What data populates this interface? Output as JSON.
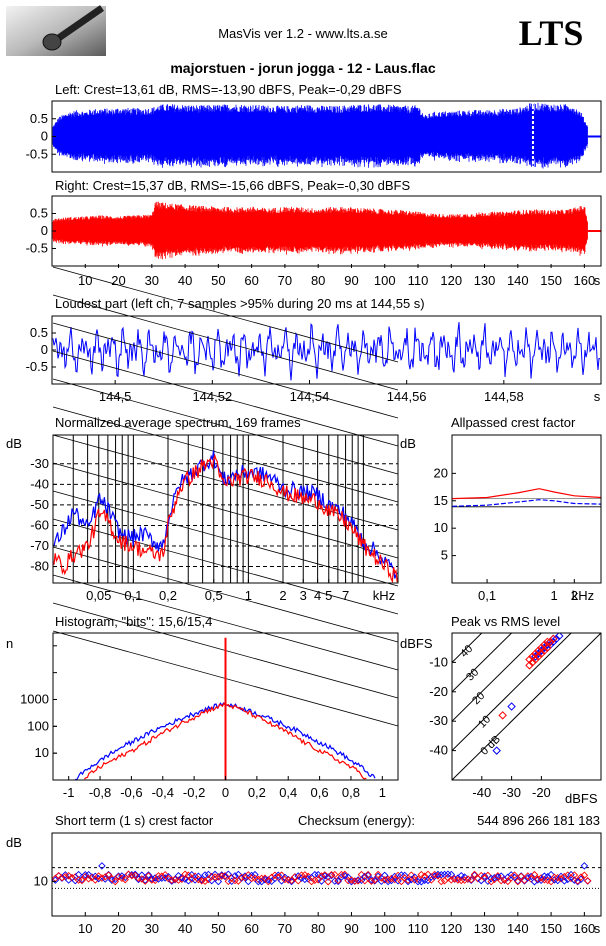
{
  "header": {
    "app_title": "MasVis ver 1.2 - www.lts.a.se",
    "logo_text": "LTS",
    "track_title": "majorstuen - jorun jogga - 12 - Laus.flac"
  },
  "colors": {
    "left": "#0000ff",
    "right": "#ff0000",
    "grid": "#000000"
  },
  "chart_data": [
    {
      "id": "left_waveform",
      "type": "area",
      "title": "Left: Crest=13,61 dB, RMS=-13,90 dBFS, Peak=-0,29 dBFS",
      "y_ticks": [
        "0.5",
        "0",
        "-0.5"
      ],
      "y_tick_values": [
        0.5,
        0,
        -0.5
      ],
      "ylim": [
        -1,
        1
      ],
      "xlim": [
        0,
        165
      ],
      "duration_s": 161,
      "peak_marker_s": 144.55,
      "envelope": {
        "x": [
          0,
          2,
          5,
          8,
          10,
          12,
          15,
          18,
          20,
          25,
          28,
          30,
          32,
          35,
          40,
          45,
          50,
          55,
          60,
          65,
          70,
          75,
          80,
          85,
          90,
          95,
          100,
          105,
          108,
          110,
          112,
          115,
          120,
          125,
          130,
          135,
          140,
          144,
          148,
          152,
          156,
          159,
          161
        ],
        "amp": [
          0.25,
          0.55,
          0.7,
          0.75,
          0.72,
          0.78,
          0.8,
          0.78,
          0.82,
          0.8,
          0.8,
          0.82,
          0.9,
          0.92,
          0.9,
          0.88,
          0.9,
          0.92,
          0.9,
          0.88,
          0.86,
          0.9,
          0.88,
          0.86,
          0.9,
          0.92,
          0.9,
          0.88,
          0.86,
          0.9,
          0.6,
          0.7,
          0.72,
          0.75,
          0.75,
          0.78,
          0.8,
          0.95,
          0.95,
          0.9,
          0.92,
          0.7,
          0.3
        ]
      }
    },
    {
      "id": "right_waveform",
      "type": "area",
      "title": "Right: Crest=15,37 dB, RMS=-15,66 dBFS, Peak=-0,30 dBFS",
      "y_ticks": [
        "0.5",
        "0",
        "-0.5"
      ],
      "y_tick_values": [
        0.5,
        0,
        -0.5
      ],
      "ylim": [
        -1,
        1
      ],
      "xlim": [
        0,
        165
      ],
      "x_ticks": [
        "10",
        "20",
        "30",
        "40",
        "50",
        "60",
        "70",
        "80",
        "90",
        "100",
        "110",
        "120",
        "130",
        "140",
        "150",
        "160",
        "s"
      ],
      "x_tick_values": [
        10,
        20,
        30,
        40,
        50,
        60,
        70,
        80,
        90,
        100,
        110,
        120,
        130,
        140,
        150,
        160
      ],
      "duration_s": 161,
      "envelope": {
        "x": [
          0,
          5,
          10,
          15,
          20,
          25,
          30,
          31,
          35,
          40,
          45,
          50,
          55,
          60,
          65,
          70,
          75,
          80,
          85,
          90,
          95,
          100,
          105,
          110,
          115,
          120,
          125,
          130,
          135,
          140,
          145,
          150,
          155,
          160,
          161
        ],
        "amp": [
          0.35,
          0.4,
          0.42,
          0.45,
          0.42,
          0.45,
          0.48,
          0.85,
          0.8,
          0.75,
          0.72,
          0.7,
          0.68,
          0.7,
          0.65,
          0.7,
          0.68,
          0.65,
          0.7,
          0.68,
          0.65,
          0.62,
          0.6,
          0.55,
          0.5,
          0.48,
          0.5,
          0.55,
          0.55,
          0.6,
          0.62,
          0.6,
          0.62,
          0.75,
          0.3
        ]
      }
    },
    {
      "id": "loudest_part",
      "type": "line",
      "title": "Loudest part (left  ch, 7 samples >95% during 20 ms at 144,55 s)",
      "y_ticks": [
        "0.5",
        "0",
        "-0.5"
      ],
      "y_tick_values": [
        0.5,
        0,
        -0.5
      ],
      "ylim": [
        -1,
        1
      ],
      "xlim": [
        144.487,
        144.6
      ],
      "x_ticks": [
        "144,5",
        "144,52",
        "144,54",
        "144,56",
        "144,58",
        "s"
      ],
      "x_tick_values": [
        144.5,
        144.52,
        144.54,
        144.56,
        144.58
      ]
    },
    {
      "id": "avg_spectrum",
      "type": "line",
      "title": "Normalized average spectrum, 169 frames",
      "ylabel": "dB",
      "y_ticks": [
        "-30",
        "-40",
        "-50",
        "-60",
        "-70",
        "-80"
      ],
      "y_tick_values": [
        -30,
        -40,
        -50,
        -60,
        -70,
        -80
      ],
      "ylim": [
        -88,
        -16
      ],
      "x_scale": "log",
      "xlim": [
        0.02,
        20
      ],
      "x_ticks": [
        "0,05",
        "0,1",
        "0,2",
        "0,5",
        "1",
        "2",
        "3",
        "4",
        "5",
        "7",
        "kHz"
      ],
      "x_tick_values": [
        0.05,
        0.1,
        0.2,
        0.5,
        1,
        2,
        3,
        4,
        5,
        7
      ],
      "series": [
        {
          "name": "",
          "color": "#0000ff",
          "x": [
            0.02,
            0.025,
            0.03,
            0.04,
            0.05,
            0.06,
            0.07,
            0.08,
            0.1,
            0.12,
            0.15,
            0.18,
            0.2,
            0.25,
            0.3,
            0.4,
            0.5,
            0.6,
            0.8,
            1,
            1.5,
            2,
            3,
            4,
            5,
            7,
            10,
            14,
            20
          ],
          "y": [
            -70,
            -62,
            -53,
            -62,
            -47,
            -52,
            -60,
            -65,
            -66,
            -64,
            -68,
            -70,
            -57,
            -40,
            -36,
            -30,
            -27,
            -38,
            -35,
            -34,
            -36,
            -42,
            -44,
            -45,
            -50,
            -55,
            -68,
            -75,
            -85
          ]
        },
        {
          "name": "",
          "color": "#ff0000",
          "x": [
            0.02,
            0.025,
            0.03,
            0.04,
            0.05,
            0.06,
            0.07,
            0.08,
            0.1,
            0.12,
            0.15,
            0.18,
            0.2,
            0.25,
            0.3,
            0.4,
            0.5,
            0.6,
            0.8,
            1,
            1.5,
            2,
            3,
            4,
            5,
            7,
            10,
            14,
            20
          ],
          "y": [
            -76,
            -80,
            -74,
            -70,
            -55,
            -57,
            -65,
            -68,
            -70,
            -72,
            -74,
            -74,
            -60,
            -42,
            -37,
            -31,
            -28,
            -40,
            -37,
            -36,
            -38,
            -44,
            -47,
            -48,
            -53,
            -58,
            -70,
            -78,
            -86
          ]
        }
      ]
    },
    {
      "id": "allpassed_crest",
      "type": "line",
      "title": "Allpassed crest factor",
      "ylabel": "dB",
      "y_ticks": [
        "20",
        "15",
        "10",
        "5"
      ],
      "y_tick_values": [
        20,
        15,
        10,
        5
      ],
      "ylim": [
        0,
        27
      ],
      "x_scale": "log",
      "xlim": [
        0.03,
        5
      ],
      "x_ticks": [
        "0,1",
        "1",
        "2",
        "kHz"
      ],
      "x_tick_values": [
        0.1,
        1,
        2
      ],
      "series": [
        {
          "name": "",
          "color": "#ff0000",
          "x": [
            0.03,
            0.1,
            0.3,
            0.6,
            1,
            2,
            5
          ],
          "y": [
            15.4,
            15.6,
            16.5,
            17.2,
            16.6,
            15.9,
            15.6
          ]
        },
        {
          "name": "",
          "color": "#0000ff",
          "x": [
            0.03,
            0.1,
            0.3,
            0.6,
            1,
            2,
            5
          ],
          "y": [
            14.0,
            14.2,
            14.8,
            15.2,
            15.0,
            14.5,
            14.4
          ]
        }
      ],
      "reference_lines": [
        15.4,
        13.9
      ]
    },
    {
      "id": "histogram",
      "type": "line",
      "title": "Histogram, \"bits\": 15,6/15,4",
      "ylabel": "n",
      "y_scale": "log",
      "y_ticks": [
        "1000",
        "100",
        "10"
      ],
      "y_tick_values": [
        1000,
        100,
        10
      ],
      "ylim": [
        1,
        300000
      ],
      "xlim": [
        -1.1,
        1.1
      ],
      "x_ticks": [
        "-1",
        "-0,8",
        "-0,6",
        "-0,4",
        "-0,2",
        "0",
        "0,2",
        "0,4",
        "0,6",
        "0,8",
        "1"
      ],
      "x_tick_values": [
        -1,
        -0.8,
        -0.6,
        -0.4,
        -0.2,
        0,
        0.2,
        0.4,
        0.6,
        0.8,
        1
      ],
      "series": [
        {
          "name": "",
          "color": "#0000ff",
          "x": [
            -0.96,
            -0.9,
            -0.8,
            -0.7,
            -0.6,
            -0.5,
            -0.4,
            -0.3,
            -0.2,
            -0.1,
            0,
            0.1,
            0.2,
            0.3,
            0.4,
            0.5,
            0.6,
            0.7,
            0.8,
            0.9,
            0.96
          ],
          "y": [
            1,
            2,
            5,
            12,
            25,
            50,
            95,
            170,
            300,
            480,
            700,
            480,
            300,
            170,
            95,
            50,
            25,
            12,
            5,
            2,
            1
          ]
        },
        {
          "name": "",
          "color": "#ff0000",
          "x": [
            -0.9,
            -0.85,
            -0.8,
            -0.7,
            -0.6,
            -0.5,
            -0.4,
            -0.3,
            -0.2,
            -0.1,
            0,
            0.1,
            0.2,
            0.3,
            0.4,
            0.5,
            0.6,
            0.7,
            0.8,
            0.85,
            0.9
          ],
          "y": [
            1,
            2,
            3,
            6,
            12,
            25,
            55,
            110,
            220,
            420,
            650,
            420,
            220,
            110,
            55,
            25,
            12,
            6,
            3,
            2,
            1
          ]
        }
      ],
      "center_spike": 200000
    },
    {
      "id": "peak_vs_rms",
      "type": "scatter",
      "title": "Peak vs RMS level",
      "ylabel": "dBFS",
      "xlabel": "dBFS",
      "y_ticks": [
        "-10",
        "-20",
        "-30",
        "-40"
      ],
      "y_tick_values": [
        -10,
        -20,
        -30,
        -40
      ],
      "ylim": [
        -50,
        0
      ],
      "xlim": [
        -50,
        0
      ],
      "x_ticks": [
        "-40",
        "-30",
        "-20"
      ],
      "x_tick_values": [
        -40,
        -30,
        -20
      ],
      "crest_lines": [
        {
          "label": "40",
          "db": 40
        },
        {
          "label": "30",
          "db": 30
        },
        {
          "label": "20",
          "db": 20
        },
        {
          "label": "10",
          "db": 10
        },
        {
          "label": "0 dB",
          "db": 0
        }
      ],
      "series": [
        {
          "name": "",
          "color": "#0000ff",
          "x": [
            -22,
            -21,
            -20,
            -19,
            -18,
            -17,
            -16,
            -15,
            -14,
            -18,
            -20,
            -22,
            -17,
            -16,
            -30,
            -35
          ],
          "y": [
            -8,
            -7,
            -6,
            -5,
            -5,
            -4,
            -3,
            -2,
            -1,
            -4,
            -6,
            -8,
            -3,
            -2,
            -25,
            -40
          ]
        },
        {
          "name": "",
          "color": "#ff0000",
          "x": [
            -24,
            -23,
            -22,
            -21,
            -20,
            -19,
            -18,
            -17,
            -16,
            -23,
            -21,
            -19,
            -24,
            -22,
            -20,
            -18,
            -33
          ],
          "y": [
            -9,
            -8,
            -7,
            -6,
            -5,
            -4,
            -3,
            -3,
            -2,
            -10,
            -8,
            -6,
            -11,
            -9,
            -7,
            -5,
            -28
          ]
        }
      ]
    },
    {
      "id": "short_term_crest",
      "type": "scatter",
      "title": "Short term (1 s) crest factor",
      "ylabel": "dB",
      "y_ticks": [
        "10"
      ],
      "y_tick_values": [
        10
      ],
      "ylim": [
        0,
        24
      ],
      "xlim": [
        0,
        165
      ],
      "x_ticks": [
        "10",
        "20",
        "30",
        "40",
        "50",
        "60",
        "70",
        "80",
        "90",
        "100",
        "110",
        "120",
        "130",
        "140",
        "150",
        "160",
        "s"
      ],
      "x_tick_values": [
        10,
        20,
        30,
        40,
        50,
        60,
        70,
        80,
        90,
        100,
        110,
        120,
        130,
        140,
        150,
        160
      ],
      "reference_lines": [
        14,
        8
      ],
      "checksum_label": "Checksum (energy):",
      "checksum_value": "544 896 266 181 183"
    }
  ]
}
